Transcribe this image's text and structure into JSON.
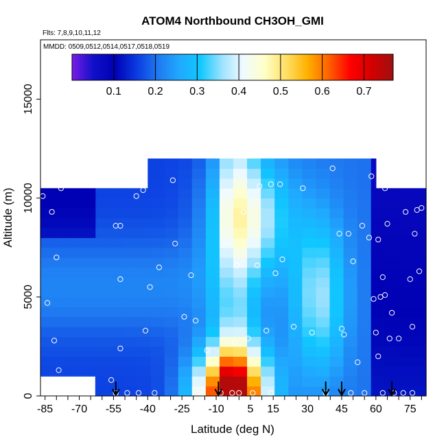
{
  "chart_data": {
    "type": "heatmap",
    "title": "ATOM4 Northbound CH3OH_GMI",
    "annotations": [
      "Flts: 7,8,9,10,11,12",
      "MMDD: 0509,0512,0514,0517,0518,0519"
    ],
    "xlabel": "Latitude (deg N)",
    "ylabel": "Altitude (m)",
    "xlim": [
      -87,
      82
    ],
    "ylim": [
      0,
      18000
    ],
    "x_ticks": [
      -85,
      -70,
      -55,
      -40,
      -25,
      -10,
      5,
      15,
      30,
      45,
      60,
      75
    ],
    "x_tick_labels": [
      "-85",
      "-70",
      "-55",
      "-40",
      "-25",
      "-10",
      "5",
      "15",
      "30",
      "45",
      "60",
      "75"
    ],
    "y_ticks": [
      0,
      5000,
      10000,
      15000
    ],
    "y_tick_labels": [
      "0",
      "5000",
      "10000",
      "15000"
    ],
    "colorbar": {
      "range": [
        0.0,
        0.77
      ],
      "ticks": [
        0.1,
        0.2,
        0.3,
        0.4,
        0.5,
        0.6,
        0.7
      ],
      "tick_labels": [
        "0.1",
        "0.2",
        "0.3",
        "0.4",
        "0.5",
        "0.6",
        "0.7"
      ],
      "colors": [
        "#7a1ce6",
        "#1010c8",
        "#0000b4",
        "#0a3ae0",
        "#1f78f0",
        "#20a8ff",
        "#10c8ff",
        "#9de2ff",
        "#f0faff",
        "#ffffc8",
        "#ffe066",
        "#ffb000",
        "#ff6000",
        "#ff0000",
        "#d40000",
        "#a01010"
      ]
    },
    "field": {
      "x_range": [
        -87,
        82
      ],
      "y_range": [
        0,
        12000
      ],
      "nx": 28,
      "ny": 24,
      "cell_height_m": 500,
      "y_start_m": 0
    },
    "flight_track_points": [
      [
        -86,
        10100
      ],
      [
        -82,
        9300
      ],
      [
        -80,
        7000
      ],
      [
        -84,
        4700
      ],
      [
        -81,
        2800
      ],
      [
        -79,
        1300
      ],
      [
        -78,
        10500
      ],
      [
        -56,
        800
      ],
      [
        -54,
        8600
      ],
      [
        -52,
        8600
      ],
      [
        -52,
        2400
      ],
      [
        -54,
        150
      ],
      [
        -49,
        150
      ],
      [
        -44,
        150
      ],
      [
        -37,
        150
      ],
      [
        -52,
        5900
      ],
      [
        -45,
        10100
      ],
      [
        -42,
        10400
      ],
      [
        -41,
        3300
      ],
      [
        -39,
        5500
      ],
      [
        -35,
        6500
      ],
      [
        -29,
        10900
      ],
      [
        -28,
        7700
      ],
      [
        -24,
        4000
      ],
      [
        -21,
        6100
      ],
      [
        -19,
        3800
      ],
      [
        -14,
        2300
      ],
      [
        -8,
        150
      ],
      [
        -3,
        150
      ],
      [
        -2,
        2700
      ],
      [
        -1,
        6600
      ],
      [
        0,
        150
      ],
      [
        2,
        9300
      ],
      [
        4,
        2900
      ],
      [
        6,
        150
      ],
      [
        8,
        6600
      ],
      [
        9,
        10600
      ],
      [
        12,
        3300
      ],
      [
        14,
        150
      ],
      [
        14,
        10700
      ],
      [
        16,
        6200
      ],
      [
        18,
        10700
      ],
      [
        19,
        6900
      ],
      [
        24,
        3500
      ],
      [
        28,
        10500
      ],
      [
        32,
        3200
      ],
      [
        38,
        150
      ],
      [
        41,
        11500
      ],
      [
        44,
        8200
      ],
      [
        45,
        3400
      ],
      [
        46,
        3100
      ],
      [
        48,
        8200
      ],
      [
        49,
        150
      ],
      [
        50,
        6800
      ],
      [
        52,
        1700
      ],
      [
        54,
        8600
      ],
      [
        55,
        150
      ],
      [
        57,
        8000
      ],
      [
        58,
        11100
      ],
      [
        59,
        4900
      ],
      [
        60,
        3200
      ],
      [
        61,
        7900
      ],
      [
        61,
        2000
      ],
      [
        62,
        5000
      ],
      [
        63,
        6000
      ],
      [
        63,
        150
      ],
      [
        64,
        10500
      ],
      [
        64,
        5100
      ],
      [
        65,
        8700
      ],
      [
        66,
        2900
      ],
      [
        67,
        4200
      ],
      [
        68,
        10800
      ],
      [
        68,
        150
      ],
      [
        70,
        2900
      ],
      [
        72,
        150
      ],
      [
        73,
        9300
      ],
      [
        74,
        10800
      ],
      [
        75,
        5900
      ],
      [
        76,
        150
      ],
      [
        76,
        3500
      ],
      [
        77,
        8200
      ],
      [
        78,
        9400
      ],
      [
        79,
        6300
      ],
      [
        80,
        9500
      ]
    ],
    "arrows_latitude": [
      -54,
      -9,
      38,
      45,
      67
    ]
  }
}
